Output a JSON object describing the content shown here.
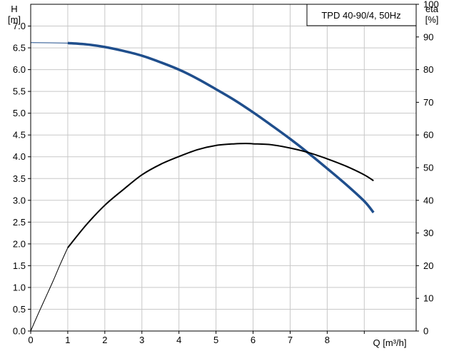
{
  "chart_data": {
    "type": "line",
    "title": "TPD 40-90/4, 50Hz",
    "ylabel_left": [
      "H",
      "[m]"
    ],
    "ylabel_right": [
      "eta",
      "[%]"
    ],
    "xlabel": "Q [m³/h]",
    "xlim": [
      0,
      10.4
    ],
    "ylim_left": [
      0,
      7.5
    ],
    "ylim_right": [
      0,
      100
    ],
    "x_ticks": [
      "0",
      "1",
      "2",
      "3",
      "4",
      "5",
      "6",
      "7",
      "8"
    ],
    "y_left_ticks": [
      "0.0",
      "0.5",
      "1.0",
      "1.5",
      "2.0",
      "2.5",
      "3.0",
      "3.5",
      "4.0",
      "4.5",
      "5.0",
      "5.5",
      "6.0",
      "6.5",
      "7.0"
    ],
    "y_right_ticks": [
      "0",
      "10",
      "20",
      "30",
      "40",
      "50",
      "60",
      "70",
      "80",
      "90",
      "100"
    ],
    "grid": true,
    "series": [
      {
        "name": "H",
        "axis": "left",
        "color": "#1f4e8c",
        "extrapolated": {
          "x": [
            0,
            1.0
          ],
          "y": [
            6.62,
            6.61
          ]
        },
        "x": [
          1.0,
          1.5,
          2.0,
          2.5,
          3.0,
          3.5,
          4.0,
          4.5,
          5.0,
          5.5,
          6.0,
          6.5,
          7.0,
          7.5,
          8.0,
          8.5,
          9.0,
          9.25
        ],
        "y": [
          6.61,
          6.58,
          6.52,
          6.43,
          6.32,
          6.17,
          6.0,
          5.79,
          5.55,
          5.3,
          5.02,
          4.72,
          4.41,
          4.08,
          3.73,
          3.37,
          2.98,
          2.72
        ]
      },
      {
        "name": "eta",
        "axis": "right",
        "color": "#000000",
        "extrapolated": {
          "x": [
            0,
            0.2,
            0.4,
            0.6,
            0.8,
            1.0
          ],
          "y": [
            0,
            5.2,
            10.2,
            15.2,
            20.5,
            25.5
          ]
        },
        "x": [
          1.0,
          1.5,
          2.0,
          2.5,
          3.0,
          3.5,
          4.0,
          4.5,
          5.0,
          5.5,
          5.8,
          6.0,
          6.5,
          7.0,
          7.5,
          8.0,
          8.5,
          9.0,
          9.25
        ],
        "y": [
          25.5,
          32.5,
          38.5,
          43.3,
          47.8,
          51.0,
          53.4,
          55.5,
          56.8,
          57.3,
          57.4,
          57.3,
          57.0,
          56.0,
          54.6,
          52.7,
          50.5,
          47.8,
          46.0
        ]
      }
    ]
  }
}
